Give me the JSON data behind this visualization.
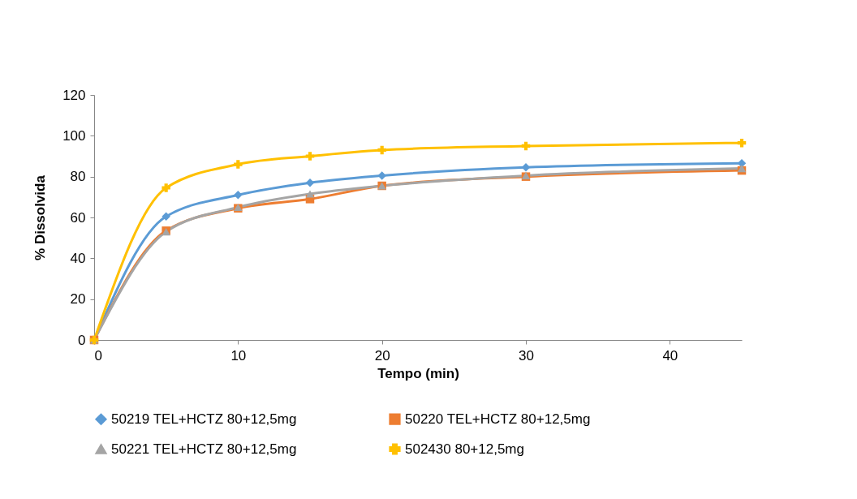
{
  "chart_data": {
    "type": "line",
    "xlabel": "Tempo (min)",
    "ylabel": "% Dissolvida",
    "x": [
      0,
      5,
      10,
      15,
      20,
      30,
      45
    ],
    "xlim": [
      0,
      45
    ],
    "xticks": [
      0,
      10,
      20,
      30,
      40
    ],
    "ylim": [
      0,
      120
    ],
    "yticks": [
      0,
      20,
      40,
      60,
      80,
      100,
      120
    ],
    "grid": false,
    "legend": "bottom",
    "series": [
      {
        "name": "50219 TEL+HCTZ 80+12,5mg",
        "color": "#5b9bd5",
        "marker": "diamond",
        "values": [
          0,
          60.5,
          71,
          77,
          80.5,
          84.5,
          86.5
        ]
      },
      {
        "name": "50220 TEL+HCTZ 80+12,5mg",
        "color": "#ed7d31",
        "marker": "square",
        "values": [
          0,
          53.5,
          64.5,
          69,
          75.5,
          80,
          83
        ]
      },
      {
        "name": "50221 TEL+HCTZ 80+12,5mg",
        "color": "#a5a5a5",
        "marker": "triangle",
        "values": [
          0,
          53,
          65,
          71.5,
          75.5,
          80.5,
          84
        ]
      },
      {
        "name": "502430 80+12,5mg",
        "color": "#ffc000",
        "marker": "cross",
        "values": [
          0,
          74.5,
          86,
          90,
          93,
          95,
          96.5
        ]
      }
    ]
  }
}
